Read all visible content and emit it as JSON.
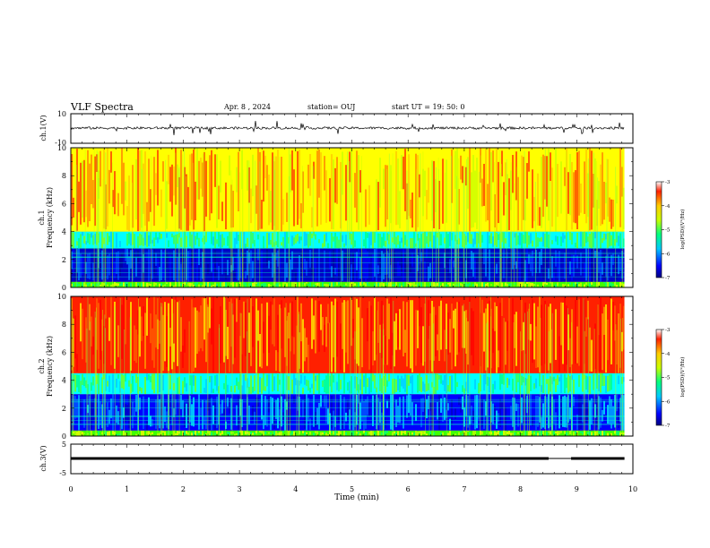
{
  "header": {
    "title": "VLF Spectra",
    "date": "Apr. 8  , 2024",
    "station": "station= OUJ",
    "start": "start  UT =   19: 50: 0"
  },
  "chart_data": [
    {
      "type": "line",
      "panel": "ch.1 waveform",
      "ylabel": "ch.1(V)",
      "ylim": [
        -10,
        10
      ],
      "yticks": [
        "10",
        "-10"
      ],
      "xlim": [
        0,
        10
      ],
      "series": [
        {
          "approx_baseline_V": 0
        }
      ]
    },
    {
      "type": "heatmap",
      "panel": "ch.1 spectrogram",
      "ylabel_line1": "ch.1",
      "ylabel_line2": "Frequency  (kHz)",
      "ylim": [
        0,
        10
      ],
      "yticks": [
        "0",
        "2",
        "4",
        "6",
        "8",
        "10"
      ],
      "xlim": [
        0,
        10
      ],
      "bands": [
        {
          "from_kHz": 0,
          "to_kHz": 0.4,
          "level": "green/yellow"
        },
        {
          "from_kHz": 0.4,
          "to_kHz": 2.8,
          "level": "blue"
        },
        {
          "from_kHz": 2.8,
          "to_kHz": 4.0,
          "level": "cyan/green"
        },
        {
          "from_kHz": 4.0,
          "to_kHz": 10,
          "level": "yellow/red"
        }
      ],
      "colorbar": {
        "ticks": [
          "-3",
          "-4",
          "-5",
          "-6",
          "-7"
        ],
        "label": "log(PSD)(V²/Hz)",
        "range": [
          -7,
          -3
        ]
      }
    },
    {
      "type": "heatmap",
      "panel": "ch.2 spectrogram",
      "ylabel_line1": "ch.2",
      "ylabel_line2": "Frequency  (kHz)",
      "ylim": [
        0,
        10
      ],
      "yticks": [
        "0",
        "2",
        "4",
        "6",
        "8",
        "10"
      ],
      "xlim": [
        0,
        10
      ],
      "bands": [
        {
          "from_kHz": 0,
          "to_kHz": 0.4,
          "level": "green/yellow"
        },
        {
          "from_kHz": 0.4,
          "to_kHz": 3.0,
          "level": "blue/cyan"
        },
        {
          "from_kHz": 3.0,
          "to_kHz": 4.5,
          "level": "cyan/green"
        },
        {
          "from_kHz": 4.5,
          "to_kHz": 10,
          "level": "red/orange"
        }
      ],
      "colorbar": {
        "ticks": [
          "-3",
          "-4",
          "-5",
          "-6",
          "-7"
        ],
        "label": "log(PSD)(V²/Hz)",
        "range": [
          -7,
          -3
        ]
      }
    },
    {
      "type": "line",
      "panel": "ch.3 waveform",
      "ylabel": "ch.3(V)",
      "ylim": [
        -5,
        5
      ],
      "yticks": [
        "5",
        "-5"
      ],
      "xlim": [
        0,
        10
      ],
      "series": [
        {
          "approx_level_V": 0,
          "gap_min": [
            8.5,
            8.9
          ]
        }
      ]
    }
  ],
  "xaxis": {
    "label": "Time  (min)",
    "ticks": [
      "0",
      "1",
      "2",
      "3",
      "4",
      "5",
      "6",
      "7",
      "8",
      "9",
      "10"
    ],
    "data_end_min": 9.85
  }
}
